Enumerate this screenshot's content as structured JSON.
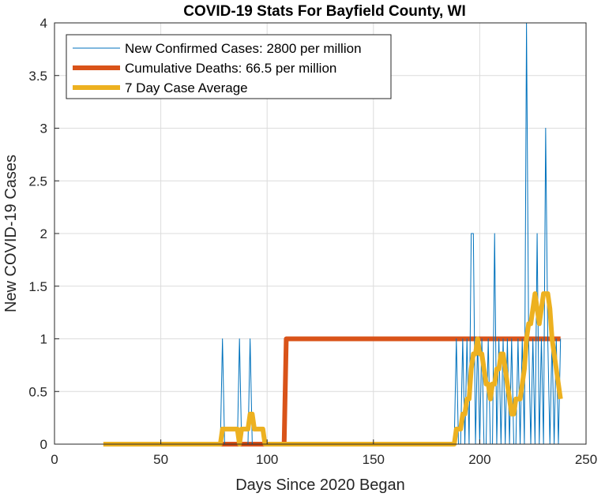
{
  "chart_data": {
    "type": "line",
    "title": "COVID-19 Stats For Bayfield County, WI",
    "xlabel": "Days Since 2020 Began",
    "ylabel": "New COVID-19 Cases",
    "xlim": [
      0,
      250
    ],
    "ylim": [
      0,
      4
    ],
    "xticks": [
      0,
      50,
      100,
      150,
      200,
      250
    ],
    "yticks": [
      0,
      0.5,
      1,
      1.5,
      2,
      2.5,
      3,
      3.5,
      4
    ],
    "xtick_labels": [
      "0",
      "50",
      "100",
      "150",
      "200",
      "250"
    ],
    "ytick_labels": [
      "0",
      "0.5",
      "1",
      "1.5",
      "2",
      "2.5",
      "3",
      "3.5",
      "4"
    ],
    "grid": true,
    "legend_position": "top-left",
    "series": [
      {
        "name": "New Confirmed Cases: 2800 per million",
        "color": "#0072BD",
        "points": [
          [
            23,
            0
          ],
          [
            78,
            0
          ],
          [
            79,
            1
          ],
          [
            80,
            0
          ],
          [
            86,
            0
          ],
          [
            87,
            1
          ],
          [
            88,
            0
          ],
          [
            91,
            0
          ],
          [
            92,
            1
          ],
          [
            93,
            0
          ],
          [
            188,
            0
          ],
          [
            189,
            1
          ],
          [
            190,
            0
          ],
          [
            191,
            0
          ],
          [
            192,
            1
          ],
          [
            193,
            0
          ],
          [
            194,
            1
          ],
          [
            195,
            0
          ],
          [
            196,
            2
          ],
          [
            197,
            2
          ],
          [
            198,
            0
          ],
          [
            199,
            1
          ],
          [
            200,
            0
          ],
          [
            201,
            1
          ],
          [
            202,
            0
          ],
          [
            203,
            0
          ],
          [
            204,
            1
          ],
          [
            205,
            0
          ],
          [
            206,
            0
          ],
          [
            207,
            2
          ],
          [
            208,
            0
          ],
          [
            209,
            1
          ],
          [
            210,
            0
          ],
          [
            211,
            1
          ],
          [
            212,
            0
          ],
          [
            213,
            1
          ],
          [
            214,
            0
          ],
          [
            215,
            1
          ],
          [
            216,
            0
          ],
          [
            217,
            0
          ],
          [
            218,
            1
          ],
          [
            219,
            0
          ],
          [
            220,
            1
          ],
          [
            221,
            0
          ],
          [
            222,
            4
          ],
          [
            223,
            1
          ],
          [
            224,
            0
          ],
          [
            225,
            1
          ],
          [
            226,
            0
          ],
          [
            227,
            2
          ],
          [
            228,
            0
          ],
          [
            229,
            1
          ],
          [
            230,
            0
          ],
          [
            231,
            3
          ],
          [
            232,
            1
          ],
          [
            233,
            0
          ],
          [
            234,
            1
          ],
          [
            235,
            0
          ],
          [
            236,
            1
          ],
          [
            237,
            0
          ],
          [
            238,
            1
          ]
        ]
      },
      {
        "name": "Cumulative Deaths: 66.5 per million",
        "color": "#D95319",
        "points": [
          [
            23,
            0
          ],
          [
            108,
            0
          ],
          [
            109,
            1
          ],
          [
            238,
            1
          ]
        ]
      },
      {
        "name": "7 Day Case Average",
        "color": "#EDB120",
        "points": [
          [
            23,
            0
          ],
          [
            78,
            0
          ],
          [
            79,
            0.143
          ],
          [
            86,
            0.143
          ],
          [
            87,
            0
          ],
          [
            88,
            0.143
          ],
          [
            91,
            0.143
          ],
          [
            92,
            0.286
          ],
          [
            93,
            0.286
          ],
          [
            94,
            0.143
          ],
          [
            98,
            0.143
          ],
          [
            99,
            0
          ],
          [
            188,
            0
          ],
          [
            189,
            0.143
          ],
          [
            191,
            0.143
          ],
          [
            192,
            0.286
          ],
          [
            193,
            0.286
          ],
          [
            194,
            0.429
          ],
          [
            195,
            0.429
          ],
          [
            196,
            0.714
          ],
          [
            197,
            0.857
          ],
          [
            198,
            0.857
          ],
          [
            199,
            1.0
          ],
          [
            200,
            0.857
          ],
          [
            201,
            0.857
          ],
          [
            202,
            0.714
          ],
          [
            203,
            0.571
          ],
          [
            204,
            0.571
          ],
          [
            205,
            0.429
          ],
          [
            206,
            0.571
          ],
          [
            207,
            0.571
          ],
          [
            208,
            0.714
          ],
          [
            209,
            0.714
          ],
          [
            210,
            0.857
          ],
          [
            211,
            0.857
          ],
          [
            212,
            0.714
          ],
          [
            213,
            0.571
          ],
          [
            214,
            0.429
          ],
          [
            215,
            0.286
          ],
          [
            216,
            0.286
          ],
          [
            217,
            0.429
          ],
          [
            218,
            0.429
          ],
          [
            219,
            0.429
          ],
          [
            220,
            0.571
          ],
          [
            221,
            0.714
          ],
          [
            222,
            1.0
          ],
          [
            223,
            1.143
          ],
          [
            224,
            1.143
          ],
          [
            225,
            1.286
          ],
          [
            226,
            1.429
          ],
          [
            227,
            1.286
          ],
          [
            228,
            1.143
          ],
          [
            229,
            1.286
          ],
          [
            230,
            1.429
          ],
          [
            231,
            1.429
          ],
          [
            232,
            1.429
          ],
          [
            233,
            1.286
          ],
          [
            234,
            1.0
          ],
          [
            235,
            0.857
          ],
          [
            236,
            0.714
          ],
          [
            237,
            0.571
          ],
          [
            238,
            0.429
          ]
        ]
      }
    ]
  }
}
